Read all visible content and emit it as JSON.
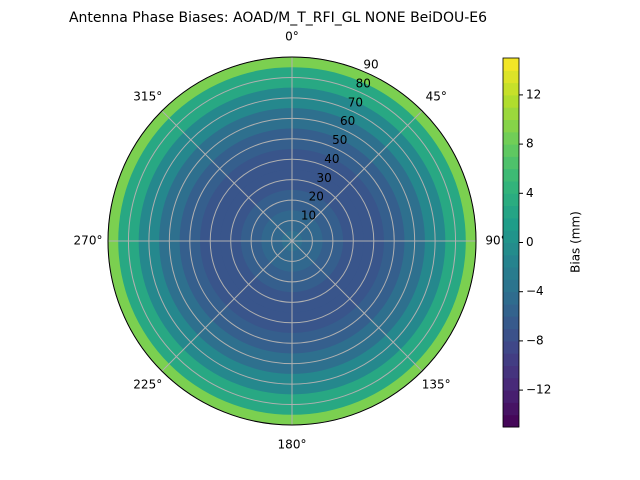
{
  "chart_data": {
    "type": "polar-contour",
    "title": "Antenna Phase Biases: AOAD/M_T_RFI_GL NONE BeiDOU-E6",
    "x": [
      0,
      10,
      20,
      30,
      40,
      50,
      60,
      70,
      80,
      90
    ],
    "series": [
      {
        "values": [
          -4,
          -5,
          -6,
          -7,
          -7,
          -6,
          -4,
          -1,
          3,
          9
        ]
      }
    ],
    "rlim": [
      0,
      90
    ],
    "rticks": [
      10,
      20,
      30,
      40,
      50,
      60,
      70,
      80,
      90
    ],
    "theta_ticks": [
      {
        "value": 0,
        "label": "0°"
      },
      {
        "value": 45,
        "label": "45°"
      },
      {
        "value": 90,
        "label": "90°"
      },
      {
        "value": 135,
        "label": "135°"
      },
      {
        "value": 180,
        "label": "180°"
      },
      {
        "value": 225,
        "label": "225°"
      },
      {
        "value": 270,
        "label": "270°"
      },
      {
        "value": 315,
        "label": "315°"
      }
    ],
    "grid": true,
    "colormap": "viridis",
    "colorbar_label": "Bias (mm)",
    "clim": [
      -15,
      15
    ],
    "cticks": [
      {
        "value": -12,
        "label": "−12"
      },
      {
        "value": -8,
        "label": "−8"
      },
      {
        "value": -4,
        "label": "−4"
      },
      0,
      4,
      8,
      12
    ]
  }
}
